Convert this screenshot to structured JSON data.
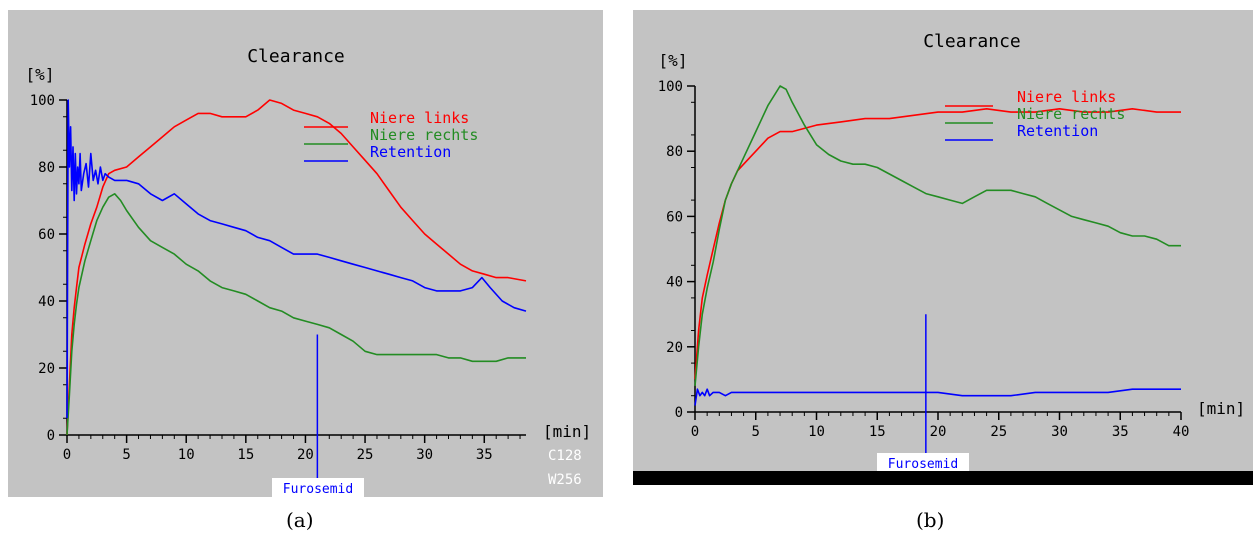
{
  "captions": [
    "(a)",
    "(b)"
  ],
  "colors": {
    "left_kidney": "#ff0000",
    "right_kidney": "#238c23",
    "retention": "#0000ff",
    "background": "#c3c3c3"
  },
  "chart_data": [
    {
      "type": "line",
      "title": "Clearance",
      "ylabel": "[%]",
      "xlabel": "[min]",
      "xlim": [
        0,
        38.5
      ],
      "ylim": [
        0,
        100
      ],
      "xticks": [
        0,
        5,
        10,
        15,
        20,
        25,
        30,
        35
      ],
      "yticks": [
        0,
        20,
        40,
        60,
        80,
        100
      ],
      "grid": false,
      "legend_position": "top-right",
      "side_labels": [
        "C128",
        "W256"
      ],
      "marker": {
        "label": "Furosemid",
        "x": 21,
        "y_top": 30
      },
      "series": [
        {
          "name": "Niere links",
          "color": "#ff0000",
          "points": [
            [
              0,
              0
            ],
            [
              0.2,
              15
            ],
            [
              0.4,
              30
            ],
            [
              0.6,
              38
            ],
            [
              0.8,
              44
            ],
            [
              1,
              50
            ],
            [
              1.5,
              57
            ],
            [
              2,
              63
            ],
            [
              2.5,
              68
            ],
            [
              3,
              74
            ],
            [
              3.5,
              78
            ],
            [
              4,
              79
            ],
            [
              5,
              80
            ],
            [
              6,
              83
            ],
            [
              7,
              86
            ],
            [
              8,
              89
            ],
            [
              9,
              92
            ],
            [
              10,
              94
            ],
            [
              11,
              96
            ],
            [
              12,
              96
            ],
            [
              13,
              95
            ],
            [
              14,
              95
            ],
            [
              15,
              95
            ],
            [
              16,
              97
            ],
            [
              17,
              100
            ],
            [
              18,
              99
            ],
            [
              19,
              97
            ],
            [
              20,
              96
            ],
            [
              21,
              95
            ],
            [
              22,
              93
            ],
            [
              23,
              90
            ],
            [
              24,
              86
            ],
            [
              25,
              82
            ],
            [
              26,
              78
            ],
            [
              27,
              73
            ],
            [
              28,
              68
            ],
            [
              29,
              64
            ],
            [
              30,
              60
            ],
            [
              31,
              57
            ],
            [
              32,
              54
            ],
            [
              33,
              51
            ],
            [
              34,
              49
            ],
            [
              35,
              48
            ],
            [
              36,
              47
            ],
            [
              37,
              47
            ],
            [
              38.5,
              46
            ]
          ]
        },
        {
          "name": "Niere rechts",
          "color": "#238c23",
          "points": [
            [
              0,
              0
            ],
            [
              0.2,
              12
            ],
            [
              0.4,
              25
            ],
            [
              0.6,
              33
            ],
            [
              0.8,
              39
            ],
            [
              1,
              44
            ],
            [
              1.5,
              52
            ],
            [
              2,
              58
            ],
            [
              2.5,
              64
            ],
            [
              3,
              68
            ],
            [
              3.5,
              71
            ],
            [
              4,
              72
            ],
            [
              4.5,
              70
            ],
            [
              5,
              67
            ],
            [
              6,
              62
            ],
            [
              7,
              58
            ],
            [
              8,
              56
            ],
            [
              9,
              54
            ],
            [
              10,
              51
            ],
            [
              11,
              49
            ],
            [
              12,
              46
            ],
            [
              13,
              44
            ],
            [
              14,
              43
            ],
            [
              15,
              42
            ],
            [
              16,
              40
            ],
            [
              17,
              38
            ],
            [
              18,
              37
            ],
            [
              19,
              35
            ],
            [
              20,
              34
            ],
            [
              21,
              33
            ],
            [
              22,
              32
            ],
            [
              23,
              30
            ],
            [
              24,
              28
            ],
            [
              25,
              25
            ],
            [
              26,
              24
            ],
            [
              27,
              24
            ],
            [
              28,
              24
            ],
            [
              29,
              24
            ],
            [
              30,
              24
            ],
            [
              31,
              24
            ],
            [
              32,
              23
            ],
            [
              33,
              23
            ],
            [
              34,
              22
            ],
            [
              35,
              22
            ],
            [
              36,
              22
            ],
            [
              37,
              23
            ],
            [
              38.5,
              23
            ]
          ]
        },
        {
          "name": "Retention",
          "color": "#0000ff",
          "points": [
            [
              0,
              5
            ],
            [
              0.1,
              100
            ],
            [
              0.2,
              80
            ],
            [
              0.3,
              92
            ],
            [
              0.4,
              73
            ],
            [
              0.5,
              86
            ],
            [
              0.6,
              70
            ],
            [
              0.7,
              84
            ],
            [
              0.8,
              72
            ],
            [
              0.9,
              80
            ],
            [
              1,
              75
            ],
            [
              1.1,
              84
            ],
            [
              1.2,
              73
            ],
            [
              1.4,
              78
            ],
            [
              1.6,
              81
            ],
            [
              1.8,
              74
            ],
            [
              2,
              84
            ],
            [
              2.2,
              76
            ],
            [
              2.4,
              79
            ],
            [
              2.6,
              75
            ],
            [
              2.8,
              80
            ],
            [
              3,
              76
            ],
            [
              3.2,
              78
            ],
            [
              3.5,
              77
            ],
            [
              4,
              76
            ],
            [
              5,
              76
            ],
            [
              6,
              75
            ],
            [
              7,
              72
            ],
            [
              8,
              70
            ],
            [
              9,
              72
            ],
            [
              10,
              69
            ],
            [
              11,
              66
            ],
            [
              12,
              64
            ],
            [
              13,
              63
            ],
            [
              14,
              62
            ],
            [
              15,
              61
            ],
            [
              16,
              59
            ],
            [
              17,
              58
            ],
            [
              18,
              56
            ],
            [
              19,
              54
            ],
            [
              20,
              54
            ],
            [
              21,
              54
            ],
            [
              22,
              53
            ],
            [
              23,
              52
            ],
            [
              24,
              51
            ],
            [
              25,
              50
            ],
            [
              26,
              49
            ],
            [
              27,
              48
            ],
            [
              28,
              47
            ],
            [
              29,
              46
            ],
            [
              30,
              44
            ],
            [
              31,
              43
            ],
            [
              32,
              43
            ],
            [
              33,
              43
            ],
            [
              34,
              44
            ],
            [
              34.8,
              47
            ],
            [
              35.5,
              44
            ],
            [
              36.5,
              40
            ],
            [
              37.5,
              38
            ],
            [
              38.5,
              37
            ]
          ]
        }
      ]
    },
    {
      "type": "line",
      "title": "Clearance",
      "ylabel": "[%]",
      "xlabel": "[min]",
      "xlim": [
        0,
        40
      ],
      "ylim": [
        0,
        100
      ],
      "xticks": [
        0,
        5,
        10,
        15,
        20,
        25,
        30,
        35,
        40
      ],
      "yticks": [
        0,
        20,
        40,
        60,
        80,
        100
      ],
      "grid": false,
      "legend_position": "top-right",
      "side_labels": [],
      "marker": {
        "label": "Furosemid",
        "x": 19,
        "y_top": 30
      },
      "series": [
        {
          "name": "Niere links",
          "color": "#ff0000",
          "points": [
            [
              0,
              10
            ],
            [
              0.3,
              25
            ],
            [
              0.6,
              35
            ],
            [
              1,
              42
            ],
            [
              1.5,
              50
            ],
            [
              2,
              58
            ],
            [
              2.5,
              65
            ],
            [
              3,
              70
            ],
            [
              3.5,
              74
            ],
            [
              4,
              76
            ],
            [
              5,
              80
            ],
            [
              6,
              84
            ],
            [
              7,
              86
            ],
            [
              8,
              86
            ],
            [
              9,
              87
            ],
            [
              10,
              88
            ],
            [
              12,
              89
            ],
            [
              14,
              90
            ],
            [
              16,
              90
            ],
            [
              18,
              91
            ],
            [
              20,
              92
            ],
            [
              22,
              92
            ],
            [
              24,
              93
            ],
            [
              26,
              92
            ],
            [
              28,
              92
            ],
            [
              30,
              93
            ],
            [
              32,
              92
            ],
            [
              34,
              92
            ],
            [
              36,
              93
            ],
            [
              38,
              92
            ],
            [
              40,
              92
            ]
          ]
        },
        {
          "name": "Niere rechts",
          "color": "#238c23",
          "points": [
            [
              0,
              8
            ],
            [
              0.3,
              20
            ],
            [
              0.6,
              30
            ],
            [
              1,
              38
            ],
            [
              1.5,
              46
            ],
            [
              2,
              56
            ],
            [
              2.5,
              65
            ],
            [
              3,
              70
            ],
            [
              3.5,
              74
            ],
            [
              4,
              78
            ],
            [
              5,
              86
            ],
            [
              6,
              94
            ],
            [
              7,
              100
            ],
            [
              7.5,
              99
            ],
            [
              8,
              95
            ],
            [
              9,
              88
            ],
            [
              10,
              82
            ],
            [
              11,
              79
            ],
            [
              12,
              77
            ],
            [
              13,
              76
            ],
            [
              14,
              76
            ],
            [
              15,
              75
            ],
            [
              16,
              73
            ],
            [
              17,
              71
            ],
            [
              18,
              69
            ],
            [
              19,
              67
            ],
            [
              20,
              66
            ],
            [
              21,
              65
            ],
            [
              22,
              64
            ],
            [
              23,
              66
            ],
            [
              24,
              68
            ],
            [
              25,
              68
            ],
            [
              26,
              68
            ],
            [
              27,
              67
            ],
            [
              28,
              66
            ],
            [
              29,
              64
            ],
            [
              30,
              62
            ],
            [
              31,
              60
            ],
            [
              32,
              59
            ],
            [
              33,
              58
            ],
            [
              34,
              57
            ],
            [
              35,
              55
            ],
            [
              36,
              54
            ],
            [
              37,
              54
            ],
            [
              38,
              53
            ],
            [
              39,
              51
            ],
            [
              40,
              51
            ]
          ]
        },
        {
          "name": "Retention",
          "color": "#0000ff",
          "points": [
            [
              0,
              2
            ],
            [
              0.2,
              7
            ],
            [
              0.4,
              5
            ],
            [
              0.6,
              6
            ],
            [
              0.8,
              5
            ],
            [
              1,
              7
            ],
            [
              1.2,
              5
            ],
            [
              1.5,
              6
            ],
            [
              2,
              6
            ],
            [
              2.5,
              5
            ],
            [
              3,
              6
            ],
            [
              4,
              6
            ],
            [
              5,
              6
            ],
            [
              6,
              6
            ],
            [
              8,
              6
            ],
            [
              10,
              6
            ],
            [
              12,
              6
            ],
            [
              14,
              6
            ],
            [
              16,
              6
            ],
            [
              18,
              6
            ],
            [
              20,
              6
            ],
            [
              22,
              5
            ],
            [
              24,
              5
            ],
            [
              26,
              5
            ],
            [
              28,
              6
            ],
            [
              30,
              6
            ],
            [
              32,
              6
            ],
            [
              34,
              6
            ],
            [
              36,
              7
            ],
            [
              38,
              7
            ],
            [
              40,
              7
            ]
          ]
        }
      ]
    }
  ]
}
